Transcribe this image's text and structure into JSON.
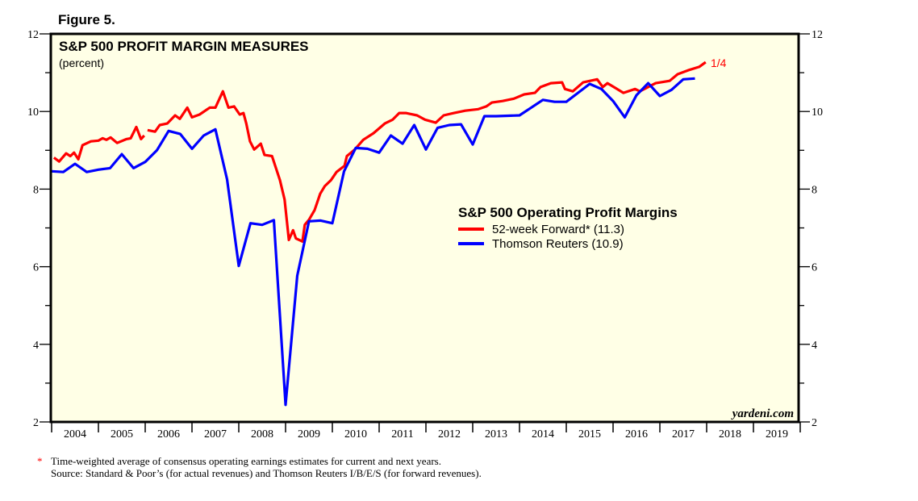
{
  "figure_label": "Figure 5.",
  "chart_data": {
    "type": "line",
    "title": "S&P 500 PROFIT MARGIN MEASURES",
    "subtitle": "(percent)",
    "xlabel": "",
    "ylabel": "percent",
    "xlim": [
      2004,
      2020
    ],
    "ylim": [
      2,
      12
    ],
    "y_ticks": [
      2,
      4,
      6,
      8,
      10,
      12
    ],
    "y_tick_labels": [
      "2",
      "4",
      "6",
      "8",
      "10",
      "12"
    ],
    "x_tick_labels": [
      "2004",
      "2005",
      "2006",
      "2007",
      "2008",
      "2009",
      "2010",
      "2011",
      "2012",
      "2013",
      "2014",
      "2015",
      "2016",
      "2017",
      "2018",
      "2019"
    ],
    "grid": false,
    "legend": {
      "title": "S&P 500 Operating Profit Margins",
      "placement": "center-right",
      "entries": [
        "52-week Forward* (11.3)",
        "Thomson Reuters (10.9)"
      ]
    },
    "annotation": "1/4",
    "watermark": "yardeni.com",
    "series": [
      {
        "name": "52-week Forward*",
        "color": "#ff0000",
        "x": [
          2004.05,
          2004.16,
          2004.31,
          2004.4,
          2004.48,
          2004.57,
          2004.66,
          2004.84,
          2005.0,
          2005.09,
          2005.17,
          2005.26,
          2005.4,
          2005.6,
          2005.69,
          2005.81,
          2005.91,
          2005.98,
          null,
          2006.05,
          2006.21,
          2006.31,
          2006.47,
          2006.64,
          2006.74,
          2006.9,
          2007.0,
          2007.16,
          2007.38,
          2007.5,
          2007.66,
          2007.78,
          2007.9,
          2008.02,
          2008.1,
          2008.16,
          2008.24,
          2008.33,
          2008.47,
          2008.55,
          2008.71,
          2008.88,
          2008.98,
          2009.07,
          2009.16,
          2009.22,
          2009.36,
          2009.41,
          2009.5,
          2009.62,
          2009.74,
          2009.84,
          2009.97,
          2010.09,
          2010.26,
          2010.31,
          2010.48,
          2010.66,
          2010.88,
          2011.12,
          2011.29,
          2011.43,
          2011.57,
          2011.81,
          2011.98,
          2012.21,
          2012.38,
          2012.6,
          2012.84,
          2013.12,
          2013.29,
          2013.41,
          2013.64,
          2013.88,
          2014.1,
          2014.33,
          2014.45,
          2014.67,
          2014.91,
          2014.97,
          2015.14,
          2015.36,
          2015.66,
          2015.78,
          2015.88,
          2016.22,
          2016.47,
          2016.57,
          2016.91,
          2017.21,
          2017.38,
          2017.6,
          2017.84,
          2017.98
        ],
        "values": [
          8.81,
          8.71,
          8.92,
          8.85,
          8.94,
          8.77,
          9.13,
          9.23,
          9.25,
          9.31,
          9.27,
          9.33,
          9.19,
          9.29,
          9.31,
          9.6,
          9.29,
          9.38,
          null,
          9.52,
          9.48,
          9.65,
          9.69,
          9.9,
          9.81,
          10.1,
          9.85,
          9.92,
          10.1,
          10.1,
          10.52,
          10.1,
          10.13,
          9.92,
          9.96,
          9.69,
          9.23,
          9.02,
          9.17,
          8.88,
          8.85,
          8.23,
          7.73,
          6.69,
          6.94,
          6.73,
          6.65,
          7.08,
          7.21,
          7.46,
          7.88,
          8.08,
          8.23,
          8.44,
          8.6,
          8.85,
          9.02,
          9.27,
          9.44,
          9.69,
          9.79,
          9.96,
          9.96,
          9.9,
          9.79,
          9.71,
          9.9,
          9.96,
          10.02,
          10.06,
          10.13,
          10.23,
          10.27,
          10.33,
          10.44,
          10.48,
          10.63,
          10.73,
          10.75,
          10.58,
          10.52,
          10.75,
          10.83,
          10.63,
          10.73,
          10.48,
          10.58,
          10.52,
          10.73,
          10.79,
          10.96,
          11.06,
          11.15,
          11.27
        ]
      },
      {
        "name": "Thomson Reuters",
        "color": "#0000ff",
        "x_start": 2004.0,
        "x_step": 0.25,
        "values": [
          8.46,
          8.44,
          8.65,
          8.44,
          8.5,
          8.54,
          8.9,
          8.54,
          8.7,
          9.0,
          9.5,
          9.42,
          9.04,
          9.38,
          9.54,
          8.25,
          6.02,
          7.12,
          7.08,
          7.2,
          2.44,
          5.77,
          7.17,
          7.19,
          7.12,
          8.46,
          9.06,
          9.04,
          8.94,
          9.38,
          9.17,
          9.65,
          9.02,
          9.58,
          9.65,
          9.67,
          9.15,
          9.88,
          9.88,
          9.89,
          9.9,
          10.1,
          10.3,
          10.25,
          10.25,
          10.48,
          10.71,
          10.58,
          10.27,
          9.85,
          10.42,
          10.73,
          10.4,
          10.56,
          10.83,
          10.85
        ]
      }
    ]
  },
  "footnote": {
    "marker": "*",
    "line1": "Time-weighted average of consensus operating earnings estimates for current and next years.",
    "line2": "Source: Standard & Poor’s (for actual revenues) and Thomson Reuters I/B/E/S (for forward revenues)."
  },
  "colors": {
    "plot_background": "#ffffe6",
    "red": "#ff0000",
    "blue": "#0000ff"
  }
}
